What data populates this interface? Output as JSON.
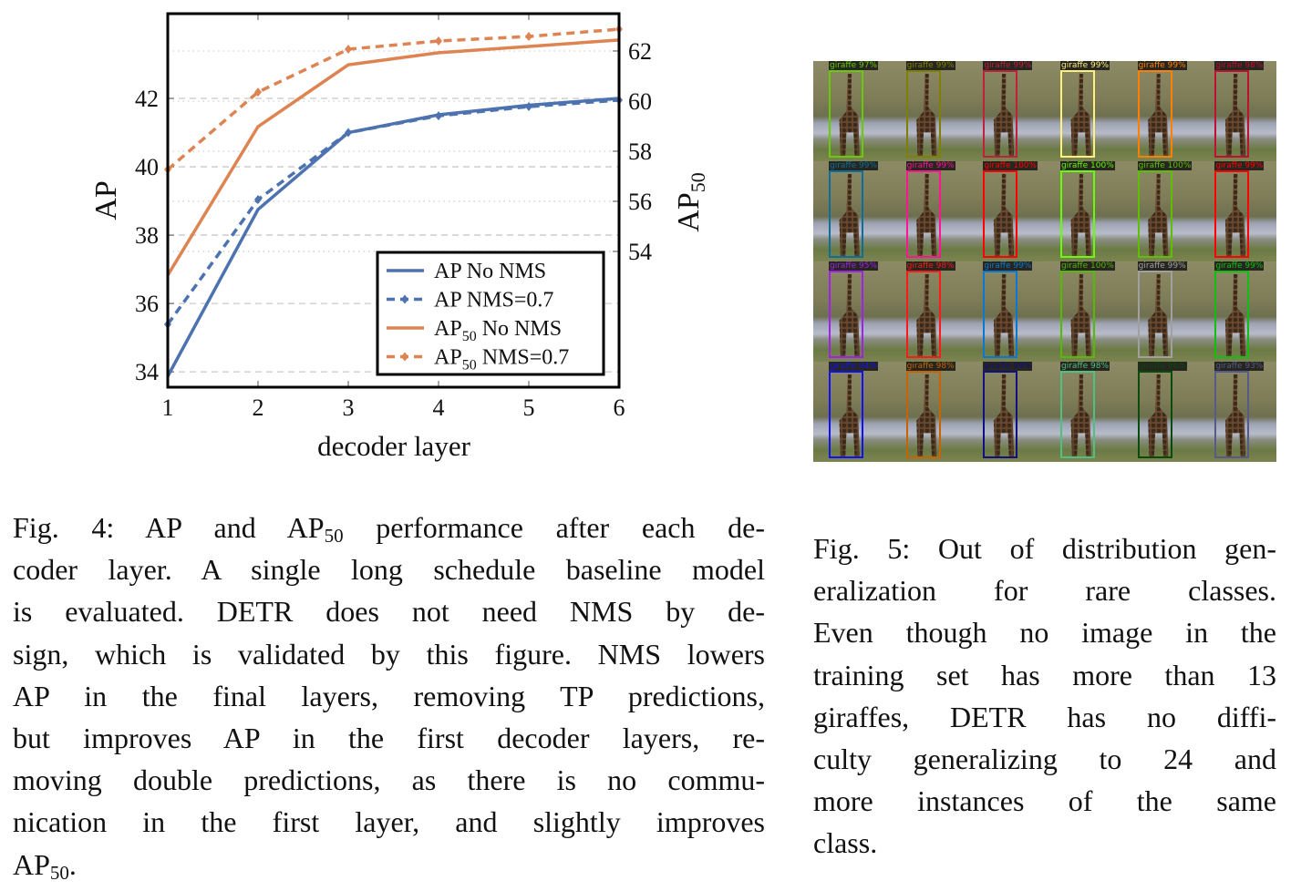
{
  "chart_data": {
    "type": "line",
    "xlabel": "decoder layer",
    "ylabel_left": "AP",
    "ylabel_right": "AP",
    "ylabel_right_sub": "50",
    "x": [
      1,
      2,
      3,
      4,
      5,
      6
    ],
    "xticks": [
      "1",
      "2",
      "3",
      "4",
      "5",
      "6"
    ],
    "yticks_left": [
      "34",
      "36",
      "38",
      "40",
      "42"
    ],
    "yticks_right": [
      "54",
      "56",
      "58",
      "60",
      "62"
    ],
    "ylim_left": [
      33.55,
      44.48
    ],
    "ylim_right": [
      48.58,
      63.49
    ],
    "grid": true,
    "legend_position": "bottom-right",
    "series": [
      {
        "name": "AP No NMS",
        "label_main": "AP",
        "label_sub": "",
        "label_rest": " No NMS",
        "axis": "left",
        "style": "solid",
        "marker": false,
        "color": "#4c72b0",
        "values": [
          33.87,
          38.75,
          41.0,
          41.52,
          41.8,
          42.0
        ]
      },
      {
        "name": "AP NMS=0.7",
        "label_main": "AP",
        "label_sub": "",
        "label_rest": " NMS=0.7",
        "axis": "left",
        "style": "dashed",
        "marker": true,
        "color": "#4c72b0",
        "values": [
          35.39,
          39.04,
          41.0,
          41.49,
          41.76,
          41.95
        ]
      },
      {
        "name": "AP50 No NMS",
        "label_main": "AP",
        "label_sub": "50",
        "label_rest": " No NMS",
        "axis": "right",
        "style": "solid",
        "marker": false,
        "color": "#dd8452",
        "values": [
          53.05,
          58.98,
          61.45,
          61.93,
          62.18,
          62.44
        ]
      },
      {
        "name": "AP50 NMS=0.7",
        "label_main": "AP",
        "label_sub": "50",
        "label_rest": " NMS=0.7",
        "axis": "right",
        "style": "dashed",
        "marker": true,
        "color": "#dd8452",
        "values": [
          57.27,
          60.36,
          62.07,
          62.4,
          62.58,
          62.87
        ]
      }
    ]
  },
  "detections": [
    {
      "label": "giraffe 97%",
      "color": "#66cc00"
    },
    {
      "label": "giraffe 99%",
      "color": "#808000"
    },
    {
      "label": "giraffe 99%",
      "color": "#c0203a"
    },
    {
      "label": "giraffe 99%",
      "color": "#fff27a"
    },
    {
      "label": "giraffe 99%",
      "color": "#ff8000"
    },
    {
      "label": "giraffe 98%",
      "color": "#c01030"
    },
    {
      "label": "giraffe 99%",
      "color": "#0a6f9a"
    },
    {
      "label": "giraffe 99%",
      "color": "#ff1493"
    },
    {
      "label": "giraffe 100%",
      "color": "#ff0000"
    },
    {
      "label": "giraffe 100%",
      "color": "#66ff00"
    },
    {
      "label": "giraffe 100%",
      "color": "#5cc000"
    },
    {
      "label": "giraffe 99%",
      "color": "#ff0000"
    },
    {
      "label": "giraffe 95%",
      "color": "#a020f0"
    },
    {
      "label": "giraffe 98%",
      "color": "#ff1a1a"
    },
    {
      "label": "giraffe 99%",
      "color": "#0a78d0"
    },
    {
      "label": "giraffe 100%",
      "color": "#55bb00"
    },
    {
      "label": "giraffe 99%",
      "color": "#a0a0a0"
    },
    {
      "label": "giraffe 99%",
      "color": "#10c010"
    },
    {
      "label": "giraffe 94%",
      "color": "#1010ff"
    },
    {
      "label": "giraffe 98%",
      "color": "#c86400"
    },
    {
      "label": "giraffe 99%",
      "color": "#101080"
    },
    {
      "label": "giraffe 98%",
      "color": "#50c080"
    },
    {
      "label": "giraffe 96%",
      "color": "#0a4a0a"
    },
    {
      "label": "giraffe 93%",
      "color": "#555a88"
    }
  ],
  "captions": {
    "fig4": [
      [
        {
          "t": "Fig. 4: AP and AP"
        },
        {
          "t": "50",
          "sub": true
        },
        {
          "t": " performance after each de-"
        }
      ],
      [
        {
          "t": "coder layer. A single long schedule baseline model"
        }
      ],
      [
        {
          "t": "is evaluated. DETR does not need NMS by de-"
        }
      ],
      [
        {
          "t": "sign, which is validated by this figure. NMS lowers"
        }
      ],
      [
        {
          "t": "AP in the final layers, removing TP predictions,"
        }
      ],
      [
        {
          "t": "but improves AP in the first decoder layers, re-"
        }
      ],
      [
        {
          "t": "moving double predictions, as there is no commu-"
        }
      ],
      [
        {
          "t": "nication in the first layer, and slightly improves"
        }
      ],
      [
        {
          "t": "AP"
        },
        {
          "t": "50",
          "sub": true
        },
        {
          "t": "."
        }
      ]
    ],
    "fig5": [
      [
        {
          "t": "Fig. 5: Out of distribution gen-"
        }
      ],
      [
        {
          "t": "eralization for rare classes."
        }
      ],
      [
        {
          "t": "Even though no image in the"
        }
      ],
      [
        {
          "t": "training set has more than 13"
        }
      ],
      [
        {
          "t": "giraffes, DETR has no diffi-"
        }
      ],
      [
        {
          "t": "culty generalizing to 24 and"
        }
      ],
      [
        {
          "t": "more instances of the same"
        }
      ],
      [
        {
          "t": "class."
        }
      ]
    ]
  }
}
